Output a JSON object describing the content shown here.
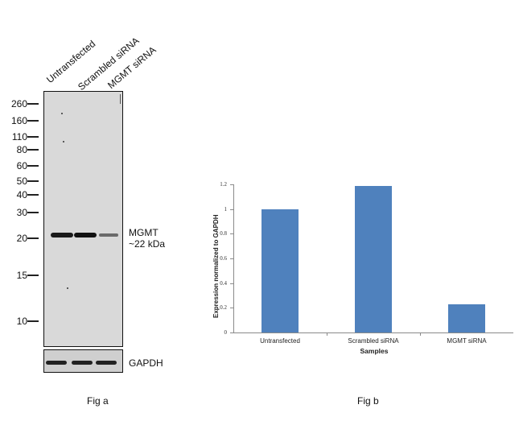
{
  "fig_a": {
    "caption": "Fig a",
    "lanes": [
      "Untransfected",
      "Scrambled siRNA",
      "MGMT  siRNA"
    ],
    "markers": [
      "260",
      "160",
      "110",
      "80",
      "60",
      "50",
      "40",
      "30",
      "20",
      "15",
      "10"
    ],
    "target_label": "MGMT",
    "target_size": "~22 kDa",
    "loading_control": "GAPDH"
  },
  "fig_b": {
    "caption": "Fig b"
  },
  "chart_data": {
    "type": "bar",
    "title": "",
    "categories": [
      "Untransfected",
      "Scrambled siRNA",
      "MGMT siRNA"
    ],
    "values": [
      1.0,
      1.19,
      0.23
    ],
    "xlabel": "Samples",
    "ylabel": "Expression normalized to GAPDH",
    "ylim": [
      0,
      1.2
    ],
    "yticks": [
      "0",
      "0.2",
      "0.4",
      "0.6",
      "0.8",
      "1",
      "1.2"
    ],
    "grid": false,
    "legend": null,
    "bar_color": "#4f81bd"
  }
}
